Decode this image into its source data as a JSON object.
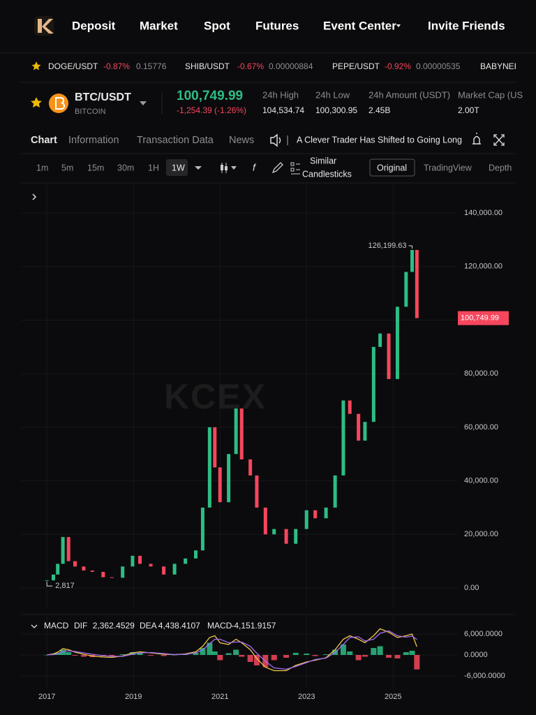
{
  "nav": {
    "items": [
      "Deposit",
      "Market",
      "Spot",
      "Futures",
      "Event Center",
      "Invite Friends"
    ]
  },
  "tickers": [
    {
      "pair": "DOGE/USDT",
      "change": "-0.87%",
      "price": "0.15776"
    },
    {
      "pair": "SHIB/USDT",
      "change": "-0.67%",
      "price": "0.00000884"
    },
    {
      "pair": "PEPE/USDT",
      "change": "-0.92%",
      "price": "0.00000535"
    },
    {
      "pair": "BABYNEI"
    }
  ],
  "coin": {
    "pair": "BTC/USDT",
    "name": "BITCOIN",
    "price": "100,749.99",
    "change": "-1,254.39 (-1.26%)",
    "stats": [
      {
        "label": "24h High",
        "value": "104,534.74"
      },
      {
        "label": "24h Low",
        "value": "100,300.95"
      },
      {
        "label": "24h Amount (USDT)",
        "value": "2.45B"
      },
      {
        "label": "Market Cap (US",
        "value": "2.00T"
      }
    ]
  },
  "tabs": [
    "Chart",
    "Information",
    "Transaction Data",
    "News"
  ],
  "news": "A Clever Trader Has Shifted to Going Long",
  "toolbar": {
    "intervals": [
      "1m",
      "5m",
      "15m",
      "30m",
      "1H",
      "1W"
    ],
    "similar": [
      "Similar",
      "Candlesticks"
    ],
    "views": [
      "Original",
      "TradingView",
      "Depth"
    ]
  },
  "chart_data": [
    {
      "type": "candlestick",
      "watermark": "KCEX",
      "x": [
        2017.0,
        2017.15,
        2017.25,
        2017.37,
        2017.5,
        2017.65,
        2017.85,
        2018.05,
        2018.3,
        2018.5,
        2018.75,
        2018.98,
        2019.15,
        2019.4,
        2019.7,
        2019.95,
        2020.2,
        2020.44,
        2020.6,
        2020.76,
        2020.88,
        2021.0,
        2021.2,
        2021.37,
        2021.5,
        2021.7,
        2021.85,
        2022.05,
        2022.25,
        2022.53,
        2022.75,
        2023.0,
        2023.2,
        2023.45,
        2023.66,
        2023.85,
        2024.0,
        2024.2,
        2024.35,
        2024.55,
        2024.7,
        2024.9,
        2025.1,
        2025.3,
        2025.44,
        2025.55
      ],
      "values": [
        2817,
        5000,
        9000,
        19000,
        10000,
        8000,
        6500,
        6000,
        4000,
        3800,
        8000,
        12000,
        9000,
        8000,
        5000,
        9000,
        11000,
        14000,
        30000,
        60000,
        45000,
        32000,
        50000,
        67000,
        48000,
        42000,
        30000,
        20000,
        22000,
        16500,
        22000,
        29000,
        26000,
        30000,
        42000,
        70000,
        65000,
        55000,
        62000,
        90000,
        95000,
        78000,
        105000,
        118000,
        126199.63,
        100749.99
      ],
      "up_color": "#2ebd85",
      "down_color": "#f6465d",
      "xlim": [
        2016.4,
        2026.48
      ],
      "ylim": [
        -7300,
        150450
      ],
      "xticks": [
        2017,
        2019,
        2021,
        2023,
        2025
      ],
      "show_xtick_labels": false,
      "yticks": [
        {
          "value": 0,
          "label": "0.00"
        },
        {
          "value": 20000,
          "label": "20,000.00"
        },
        {
          "value": 40000,
          "label": "40,000.00"
        },
        {
          "value": 60000,
          "label": "60,000.00"
        },
        {
          "value": 80000,
          "label": "80,000.00"
        },
        {
          "value": 100000,
          "label": "100,000.00"
        },
        {
          "value": 120000,
          "label": "120,000.00"
        },
        {
          "value": 140000,
          "label": "140,000.00"
        }
      ],
      "grid": true,
      "high_label": {
        "value": 126199.63,
        "label": "126,199.63"
      },
      "low_label": {
        "value": 2817,
        "label": "2,817"
      },
      "last_label": {
        "value": 100749.99,
        "label": "100,749.99"
      }
    },
    {
      "type": "macd",
      "title": "MACD",
      "x": [
        2017.0,
        2017.15,
        2017.25,
        2017.37,
        2017.5,
        2017.65,
        2017.85,
        2018.05,
        2018.3,
        2018.5,
        2018.75,
        2018.98,
        2019.15,
        2019.4,
        2019.7,
        2019.95,
        2020.2,
        2020.44,
        2020.6,
        2020.76,
        2020.88,
        2021.0,
        2021.2,
        2021.37,
        2021.5,
        2021.7,
        2021.85,
        2022.05,
        2022.25,
        2022.53,
        2022.75,
        2023.0,
        2023.2,
        2023.45,
        2023.66,
        2023.85,
        2024.0,
        2024.2,
        2024.35,
        2024.55,
        2024.7,
        2024.9,
        2025.1,
        2025.3,
        2025.44,
        2025.55
      ],
      "series": [
        {
          "name": "DIF",
          "color": "#f0c948",
          "current": {
            "value": 2362.4529,
            "label": "2,362.4529"
          },
          "values": [
            0,
            300,
            800,
            1800,
            1500,
            800,
            200,
            -300,
            -600,
            -700,
            -300,
            600,
            900,
            600,
            200,
            100,
            300,
            900,
            2500,
            5000,
            5500,
            3500,
            3000,
            4500,
            3500,
            1500,
            -1000,
            -3500,
            -4500,
            -4500,
            -3000,
            -2000,
            -1500,
            -800,
            1500,
            4500,
            5500,
            4500,
            3500,
            5500,
            7500,
            6500,
            5000,
            5500,
            6000,
            2362.4529
          ]
        },
        {
          "name": "DEA",
          "color": "#a76cf5",
          "current": {
            "value": 4438.4107,
            "label": "4,438.4107"
          },
          "values": [
            0,
            100,
            400,
            1000,
            1200,
            1000,
            600,
            200,
            -200,
            -400,
            -400,
            200,
            600,
            700,
            400,
            100,
            200,
            600,
            1500,
            3200,
            4500,
            4500,
            3500,
            3700,
            3700,
            2500,
            500,
            -1800,
            -3700,
            -4100,
            -3300,
            -2200,
            -1300,
            -900,
            700,
            3000,
            5000,
            5200,
            4000,
            4500,
            6200,
            6900,
            5500,
            5100,
            5400,
            4438.4107
          ]
        },
        {
          "name": "MACD",
          "kind": "histogram",
          "current": {
            "value": -4151.9157,
            "label": "-4,151.9157"
          },
          "values": [
            0,
            200,
            600,
            1500,
            800,
            -200,
            -500,
            -600,
            -400,
            -300,
            200,
            800,
            500,
            -200,
            -300,
            0,
            200,
            600,
            2000,
            3500,
            1000,
            -1500,
            500,
            1500,
            -500,
            -2000,
            -3000,
            -3500,
            -1500,
            -800,
            600,
            400,
            -300,
            200,
            1500,
            3000,
            1000,
            -1500,
            -500,
            2000,
            2500,
            -800,
            -1000,
            800,
            1200,
            -4151.9157
          ]
        }
      ],
      "up_color": "#2ebd85",
      "down_color": "#f6465d",
      "xlim": [
        2016.4,
        2026.48
      ],
      "ylim": [
        -9400,
        11200
      ],
      "xticks": [
        2017,
        2019,
        2021,
        2023,
        2025
      ],
      "show_xtick_labels": true,
      "yticks": [
        {
          "value": 6000,
          "label": "6,000.0000"
        },
        {
          "value": 0,
          "label": "0.0000"
        },
        {
          "value": -6000,
          "label": "-6,000.0000"
        }
      ],
      "grid": true
    }
  ]
}
